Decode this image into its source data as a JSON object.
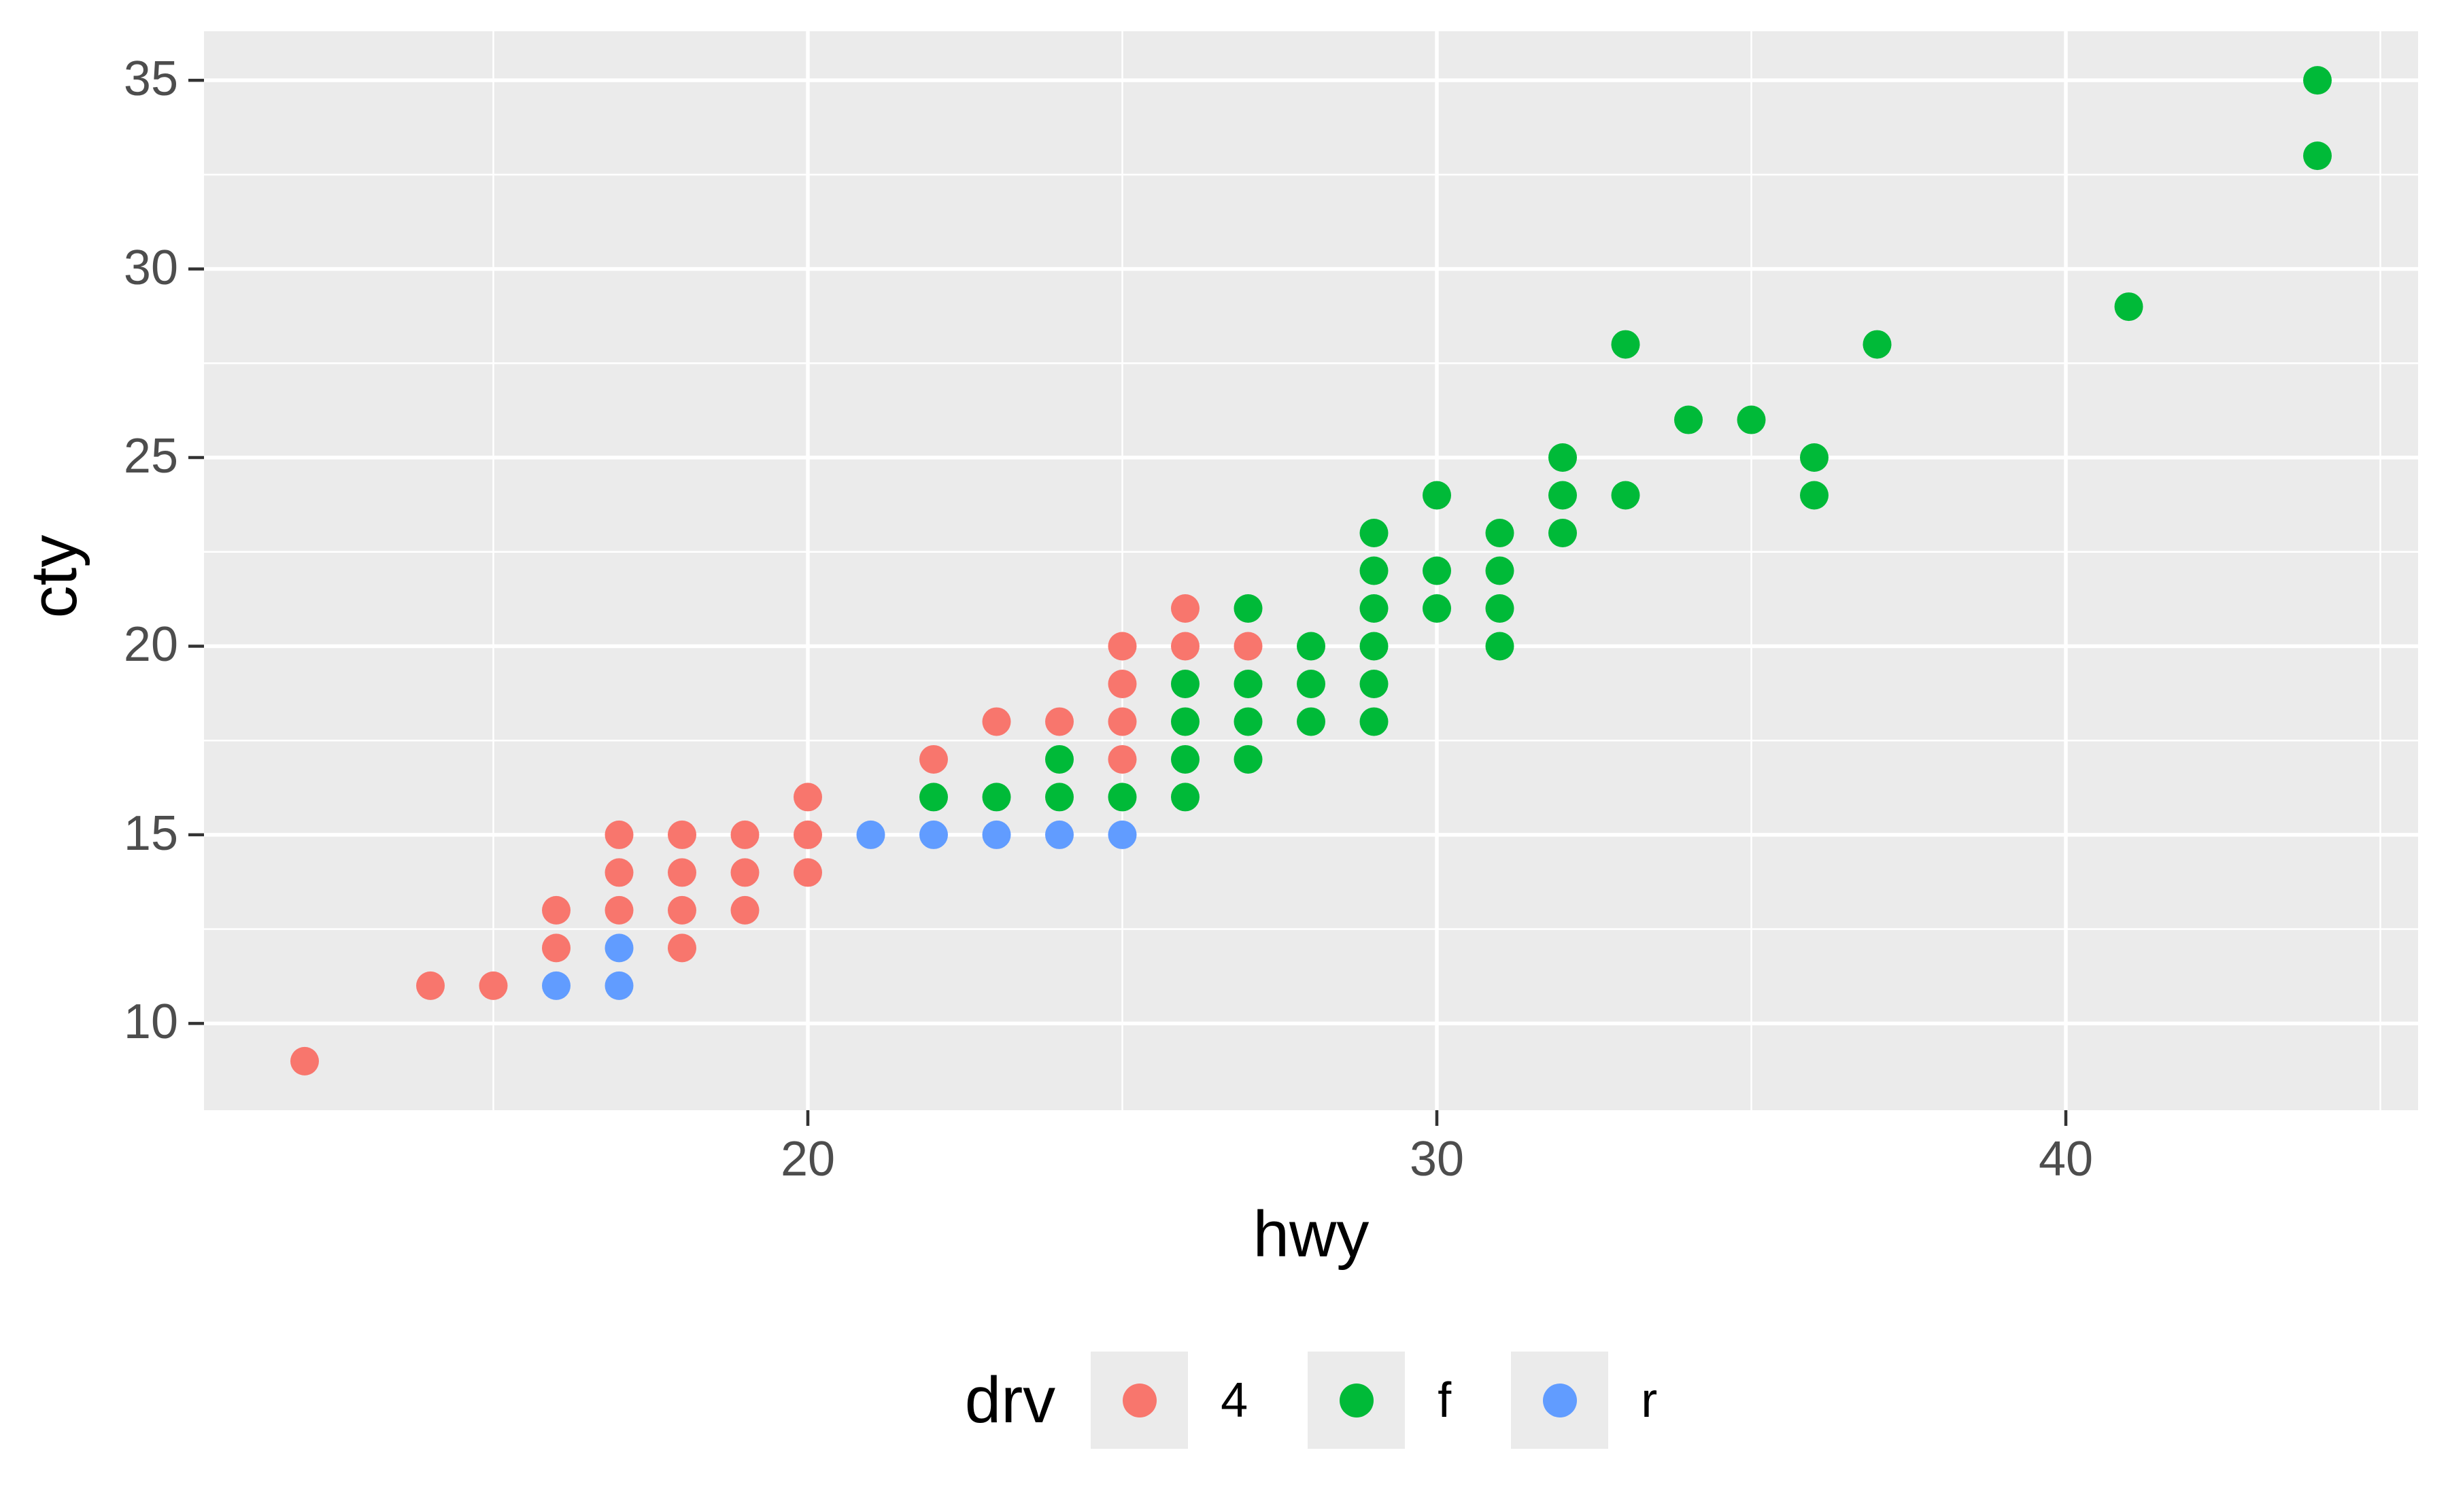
{
  "figure": {
    "background": "#FFFFFF"
  },
  "style": {
    "panel_background": "#EBEBEB",
    "grid_color": "#FFFFFF",
    "tick_text_color": "#4D4D4D",
    "tick_mark_color": "#333333",
    "title_text_color": "#000000",
    "legend_key_background": "#EBEBEB"
  },
  "chart_data": {
    "type": "scatter",
    "title": "",
    "xlabel": "hwy",
    "ylabel": "cty",
    "xlim": [
      10.4,
      45.6
    ],
    "ylim": [
      7.7,
      36.3
    ],
    "x_ticks": [
      20,
      30,
      40
    ],
    "x_minor_ticks": [
      15,
      25,
      35,
      45
    ],
    "y_ticks": [
      10,
      15,
      20,
      25,
      30,
      35
    ],
    "y_minor_ticks": [
      12.5,
      17.5,
      22.5,
      27.5,
      32.5
    ],
    "grid": "white major and minor gridlines on gray panel",
    "legend": {
      "title": "drv",
      "position": "bottom",
      "entries": [
        {
          "label": "4",
          "color": "#F8766D"
        },
        {
          "label": "f",
          "color": "#00BA38"
        },
        {
          "label": "r",
          "color": "#619CFF"
        }
      ]
    },
    "series": [
      {
        "name": "4",
        "color": "#F8766D",
        "points": [
          [
            12,
            9
          ],
          [
            14,
            11
          ],
          [
            15,
            11
          ],
          [
            16,
            12
          ],
          [
            18,
            12
          ],
          [
            16,
            13
          ],
          [
            17,
            13
          ],
          [
            18,
            13
          ],
          [
            19,
            13
          ],
          [
            17,
            14
          ],
          [
            18,
            14
          ],
          [
            19,
            14
          ],
          [
            20,
            14
          ],
          [
            17,
            15
          ],
          [
            18,
            15
          ],
          [
            19,
            15
          ],
          [
            20,
            15
          ],
          [
            20,
            16
          ],
          [
            22,
            17
          ],
          [
            25,
            17
          ],
          [
            23,
            18
          ],
          [
            24,
            18
          ],
          [
            25,
            18
          ],
          [
            25,
            19
          ],
          [
            25,
            20
          ],
          [
            26,
            20
          ],
          [
            27,
            20
          ],
          [
            26,
            21
          ]
        ]
      },
      {
        "name": "f",
        "color": "#00BA38",
        "points": [
          [
            22,
            16
          ],
          [
            23,
            16
          ],
          [
            24,
            16
          ],
          [
            25,
            16
          ],
          [
            26,
            16
          ],
          [
            24,
            17
          ],
          [
            26,
            17
          ],
          [
            27,
            17
          ],
          [
            26,
            18
          ],
          [
            27,
            18
          ],
          [
            28,
            18
          ],
          [
            29,
            18
          ],
          [
            26,
            19
          ],
          [
            27,
            19
          ],
          [
            28,
            19
          ],
          [
            29,
            19
          ],
          [
            28,
            20
          ],
          [
            29,
            20
          ],
          [
            31,
            20
          ],
          [
            27,
            21
          ],
          [
            29,
            21
          ],
          [
            30,
            21
          ],
          [
            31,
            21
          ],
          [
            29,
            22
          ],
          [
            30,
            22
          ],
          [
            31,
            22
          ],
          [
            29,
            23
          ],
          [
            31,
            23
          ],
          [
            32,
            23
          ],
          [
            30,
            24
          ],
          [
            32,
            24
          ],
          [
            33,
            24
          ],
          [
            36,
            24
          ],
          [
            32,
            25
          ],
          [
            36,
            25
          ],
          [
            34,
            26
          ],
          [
            35,
            26
          ],
          [
            33,
            28
          ],
          [
            37,
            28
          ],
          [
            41,
            29
          ],
          [
            44,
            33
          ],
          [
            44,
            35
          ]
        ]
      },
      {
        "name": "r",
        "color": "#619CFF",
        "points": [
          [
            16,
            11
          ],
          [
            17,
            11
          ],
          [
            17,
            12
          ],
          [
            21,
            15
          ],
          [
            22,
            15
          ],
          [
            23,
            15
          ],
          [
            24,
            15
          ],
          [
            25,
            15
          ]
        ]
      }
    ]
  }
}
